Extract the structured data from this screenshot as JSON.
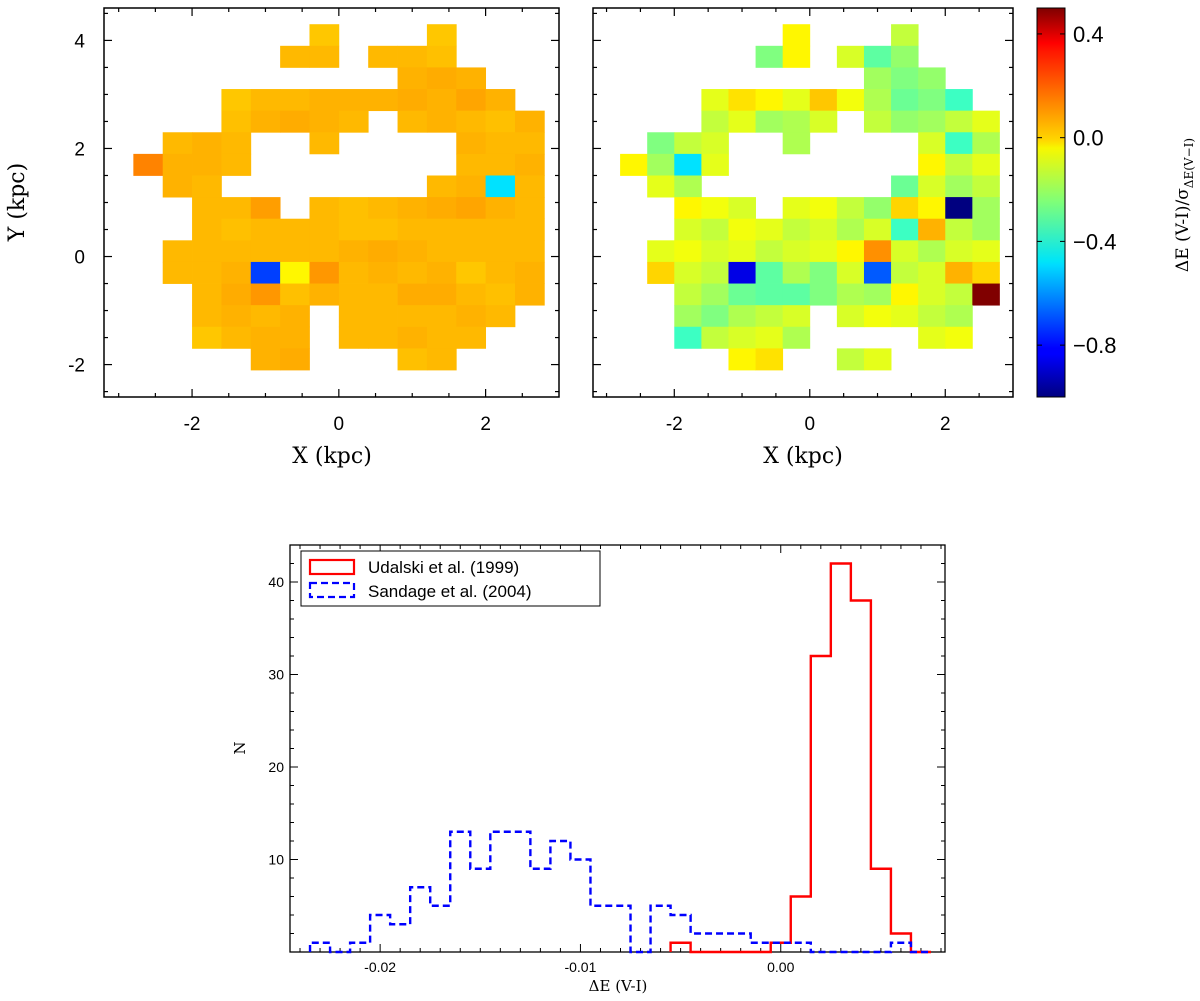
{
  "chart_data": [
    {
      "type": "heatmap",
      "panel": "left",
      "xlabel": "X (kpc)",
      "ylabel": "Y (kpc)",
      "xlim": [
        -3.2,
        3.0
      ],
      "ylim": [
        -2.6,
        4.6
      ],
      "xticks": [
        -2,
        0,
        2
      ],
      "yticks": [
        -2,
        0,
        2,
        4
      ],
      "grid": {
        "x0": -2.8,
        "dx": 0.4,
        "y_top": 4.3,
        "dy": 0.4,
        "cols": 14,
        "rows": 16
      },
      "values": [
        [
          null,
          null,
          null,
          null,
          null,
          null,
          0.02,
          null,
          null,
          null,
          0.02,
          null,
          null,
          null
        ],
        [
          null,
          null,
          null,
          null,
          null,
          0.04,
          0.04,
          null,
          0.04,
          0.04,
          0.03,
          null,
          null,
          null
        ],
        [
          null,
          null,
          null,
          null,
          null,
          null,
          null,
          null,
          null,
          0.05,
          0.06,
          0.05,
          null,
          null
        ],
        [
          null,
          null,
          null,
          0.02,
          0.04,
          0.04,
          0.05,
          0.05,
          0.05,
          0.06,
          0.05,
          0.07,
          0.05,
          null
        ],
        [
          null,
          null,
          null,
          0.03,
          0.05,
          0.06,
          0.05,
          0.04,
          null,
          0.04,
          0.05,
          0.04,
          0.03,
          0.05
        ],
        [
          null,
          0.04,
          0.05,
          0.04,
          null,
          null,
          0.04,
          null,
          null,
          null,
          null,
          0.05,
          0.04,
          0.04
        ],
        [
          0.12,
          0.05,
          0.05,
          0.04,
          null,
          null,
          null,
          null,
          null,
          null,
          null,
          0.04,
          0.04,
          0.05
        ],
        [
          null,
          0.05,
          0.04,
          null,
          null,
          null,
          null,
          null,
          null,
          null,
          0.04,
          0.05,
          -0.48,
          0.04
        ],
        [
          null,
          null,
          0.04,
          0.04,
          0.08,
          null,
          0.04,
          0.03,
          0.04,
          0.05,
          0.06,
          0.07,
          0.05,
          0.04
        ],
        [
          null,
          null,
          0.04,
          0.03,
          0.04,
          0.04,
          0.04,
          0.03,
          0.03,
          0.04,
          0.04,
          0.04,
          0.04,
          0.04
        ],
        [
          null,
          0.04,
          0.04,
          0.04,
          0.04,
          0.04,
          0.04,
          0.05,
          0.06,
          0.05,
          0.04,
          0.04,
          0.04,
          0.04
        ],
        [
          null,
          0.04,
          0.04,
          0.05,
          -0.72,
          -0.05,
          0.09,
          0.04,
          0.05,
          0.04,
          0.05,
          0.02,
          0.04,
          0.05
        ],
        [
          null,
          null,
          0.04,
          0.06,
          0.09,
          0.03,
          0.05,
          0.04,
          0.04,
          0.06,
          0.06,
          0.04,
          0.03,
          0.05
        ],
        [
          null,
          null,
          0.04,
          0.05,
          0.04,
          0.05,
          null,
          0.04,
          0.04,
          0.04,
          0.04,
          0.05,
          0.04,
          null
        ],
        [
          null,
          null,
          0.02,
          0.04,
          0.05,
          0.05,
          null,
          0.04,
          0.04,
          0.05,
          0.04,
          0.04,
          null,
          null
        ],
        [
          null,
          null,
          null,
          null,
          0.05,
          0.06,
          null,
          null,
          null,
          0.03,
          0.04,
          null,
          null,
          null
        ]
      ]
    },
    {
      "type": "heatmap",
      "panel": "right",
      "xlabel": "X (kpc)",
      "xlim": [
        -3.2,
        3.0
      ],
      "ylim": [
        -2.6,
        4.6
      ],
      "xticks": [
        -2,
        0,
        2
      ],
      "grid": {
        "x0": -2.8,
        "dx": 0.4,
        "y_top": 4.3,
        "dy": 0.4,
        "cols": 14,
        "rows": 16
      },
      "values": [
        [
          null,
          null,
          null,
          null,
          null,
          null,
          -0.05,
          null,
          null,
          null,
          -0.15,
          null,
          null,
          null
        ],
        [
          null,
          null,
          null,
          null,
          null,
          -0.25,
          -0.05,
          null,
          -0.12,
          -0.3,
          -0.22,
          null,
          null,
          null
        ],
        [
          null,
          null,
          null,
          null,
          null,
          null,
          null,
          null,
          null,
          -0.2,
          -0.25,
          -0.22,
          null,
          null
        ],
        [
          null,
          null,
          null,
          -0.1,
          -0.02,
          -0.05,
          -0.1,
          0.02,
          -0.08,
          -0.18,
          -0.28,
          -0.25,
          -0.35,
          null
        ],
        [
          null,
          null,
          null,
          -0.15,
          -0.1,
          -0.2,
          -0.18,
          -0.12,
          null,
          -0.15,
          -0.22,
          -0.2,
          -0.15,
          -0.1
        ],
        [
          null,
          -0.25,
          -0.15,
          -0.12,
          null,
          null,
          -0.18,
          null,
          null,
          null,
          null,
          -0.12,
          -0.35,
          -0.18
        ],
        [
          -0.05,
          -0.2,
          -0.48,
          -0.1,
          null,
          null,
          null,
          null,
          null,
          null,
          null,
          -0.05,
          -0.15,
          -0.1
        ],
        [
          null,
          -0.1,
          -0.18,
          null,
          null,
          null,
          null,
          null,
          null,
          null,
          -0.28,
          -0.12,
          -0.2,
          -0.15
        ],
        [
          null,
          null,
          -0.05,
          -0.08,
          -0.12,
          null,
          -0.1,
          -0.08,
          -0.15,
          -0.22,
          0.0,
          -0.05,
          -1.0,
          -0.2
        ],
        [
          null,
          null,
          -0.12,
          -0.15,
          -0.08,
          -0.1,
          -0.15,
          -0.12,
          -0.18,
          -0.12,
          -0.35,
          0.05,
          -0.15,
          -0.2
        ],
        [
          null,
          -0.1,
          -0.08,
          -0.12,
          -0.1,
          -0.15,
          -0.12,
          -0.1,
          -0.05,
          0.1,
          -0.12,
          -0.18,
          -0.12,
          -0.1
        ],
        [
          null,
          0.0,
          -0.12,
          -0.15,
          -0.85,
          -0.3,
          -0.18,
          -0.25,
          -0.12,
          -0.68,
          -0.15,
          -0.12,
          0.05,
          0.0
        ],
        [
          null,
          null,
          -0.15,
          -0.2,
          -0.28,
          -0.3,
          -0.3,
          -0.25,
          -0.18,
          -0.2,
          -0.05,
          -0.12,
          -0.15,
          0.5
        ],
        [
          null,
          null,
          -0.2,
          -0.25,
          -0.18,
          -0.15,
          -0.12,
          null,
          -0.12,
          -0.08,
          -0.1,
          -0.15,
          -0.18,
          null
        ],
        [
          null,
          null,
          -0.35,
          -0.15,
          -0.12,
          -0.1,
          -0.18,
          null,
          null,
          null,
          null,
          -0.1,
          -0.08,
          null
        ],
        [
          null,
          null,
          null,
          null,
          -0.05,
          -0.02,
          null,
          null,
          -0.15,
          -0.1,
          null,
          null,
          null,
          null
        ]
      ]
    },
    {
      "type": "colorbar",
      "colormap": "jet",
      "label": "ΔE (V-I)/σ",
      "label_sub": "ΔE(V−I)",
      "range": [
        -1.0,
        0.5
      ],
      "ticks": [
        0.4,
        0.0,
        -0.4,
        -0.8
      ],
      "tick_labels": [
        "0.4",
        "0.0",
        "−0.4",
        "−0.8"
      ]
    },
    {
      "type": "histogram",
      "xlabel": "ΔE (V-I)",
      "ylabel": "N",
      "xlim": [
        -0.0245,
        0.0082
      ],
      "ylim": [
        0,
        44
      ],
      "xticks": [
        -0.02,
        -0.01,
        0.0
      ],
      "xtick_labels": [
        "-0.02",
        "-0.01",
        "0.00"
      ],
      "yticks": [
        10,
        20,
        30,
        40
      ],
      "ytick_labels": [
        "10",
        "20",
        "30",
        "40"
      ],
      "legend_position": "top-left",
      "series": [
        {
          "name": "Udalski et al. (1999)",
          "color": "#ff0000",
          "style": "solid",
          "edges": [
            -0.0055,
            -0.0045,
            -0.0035,
            -0.0025,
            -0.0015,
            -0.0005,
            0.0005,
            0.0015,
            0.0025,
            0.0035,
            0.0045,
            0.0055,
            0.0065,
            0.0075
          ],
          "counts": [
            1,
            0,
            0,
            0,
            0,
            1,
            6,
            32,
            42,
            38,
            9,
            2,
            0
          ]
        },
        {
          "name": "Sandage et al. (2004)",
          "color": "#0000ff",
          "style": "dashed",
          "edges": [
            -0.0235,
            -0.0225,
            -0.0215,
            -0.0205,
            -0.0195,
            -0.0185,
            -0.0175,
            -0.0165,
            -0.0155,
            -0.0145,
            -0.0135,
            -0.0125,
            -0.0115,
            -0.0105,
            -0.0095,
            -0.0085,
            -0.0075,
            -0.0065,
            -0.0055,
            -0.0045,
            -0.0035,
            -0.0025,
            -0.0015,
            -0.0005,
            0.0005,
            0.0015,
            0.0025,
            0.0035,
            0.0045,
            0.0055,
            0.0065,
            0.0075
          ],
          "counts": [
            1,
            0,
            1,
            4,
            3,
            7,
            5,
            13,
            9,
            13,
            13,
            9,
            12,
            10,
            5,
            5,
            0,
            5,
            4,
            2,
            2,
            2,
            1,
            1,
            1,
            0,
            0,
            0,
            0,
            1,
            0
          ]
        }
      ]
    }
  ]
}
